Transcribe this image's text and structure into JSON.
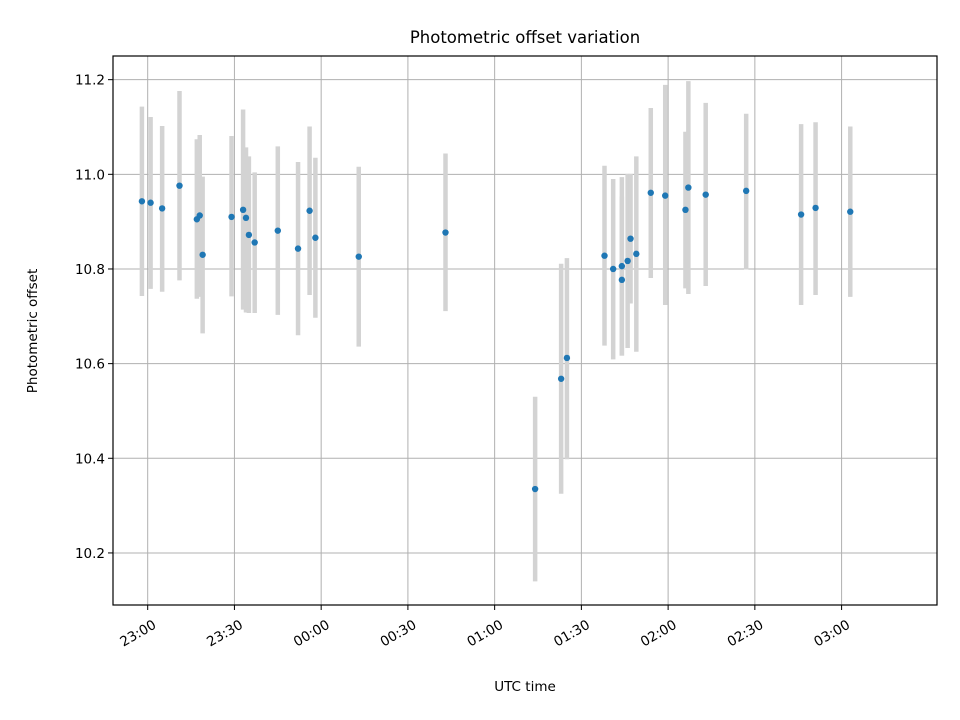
{
  "chart_data": {
    "type": "scatter",
    "title": "Photometric offset variation",
    "xlabel": "UTC time",
    "ylabel": "Photometric offset",
    "x_axis_type": "time",
    "xlim": [
      "22:48",
      "03:33"
    ],
    "ylim": [
      10.09,
      11.25
    ],
    "xticks": [
      "23:00",
      "23:30",
      "00:00",
      "00:30",
      "01:00",
      "01:30",
      "02:00",
      "02:30",
      "03:00"
    ],
    "yticks": [
      "10.2",
      "10.4",
      "10.6",
      "10.8",
      "11.0",
      "11.2"
    ],
    "grid": true,
    "colors": {
      "point": "#1f77b4",
      "errorbar": "#d3d3d3"
    },
    "series": [
      {
        "x": [
          "22:58",
          "23:01",
          "23:05",
          "23:11",
          "23:17",
          "23:18",
          "23:19",
          "23:29",
          "23:33",
          "23:34",
          "23:35",
          "23:37",
          "23:45",
          "23:52",
          "23:56",
          "23:58",
          "00:13",
          "00:43",
          "01:14",
          "01:23",
          "01:25",
          "01:38",
          "01:41",
          "01:44",
          "01:44",
          "01:46",
          "01:47",
          "01:49",
          "01:54",
          "01:59",
          "02:06",
          "02:07",
          "02:13",
          "02:27",
          "02:46",
          "02:51",
          "03:03"
        ],
        "y": [
          10.943,
          10.94,
          10.928,
          10.976,
          10.905,
          10.913,
          10.83,
          10.91,
          10.925,
          10.908,
          10.872,
          10.856,
          10.881,
          10.843,
          10.923,
          10.866,
          10.826,
          10.877,
          10.335,
          10.568,
          10.612,
          10.828,
          10.8,
          10.806,
          10.777,
          10.817,
          10.864,
          10.832,
          10.961,
          10.955,
          10.925,
          10.972,
          10.957,
          10.965,
          10.915,
          10.929,
          10.921
        ],
        "err_low": [
          10.743,
          10.758,
          10.752,
          10.776,
          10.737,
          10.741,
          10.664,
          10.742,
          10.714,
          10.708,
          10.707,
          10.707,
          10.703,
          10.66,
          10.745,
          10.697,
          10.636,
          10.711,
          10.14,
          10.325,
          10.398,
          10.638,
          10.609,
          10.617,
          10.617,
          10.633,
          10.727,
          10.625,
          10.781,
          10.724,
          10.759,
          10.747,
          10.764,
          10.799,
          10.724,
          10.745,
          10.741
        ],
        "err_high": [
          11.143,
          11.121,
          11.102,
          11.176,
          11.074,
          11.083,
          10.995,
          11.081,
          11.137,
          11.057,
          11.038,
          11.004,
          11.059,
          11.026,
          11.101,
          11.035,
          11.016,
          11.044,
          10.53,
          10.811,
          10.823,
          11.018,
          10.99,
          10.994,
          10.953,
          11.001,
          11.001,
          11.038,
          11.14,
          11.189,
          11.09,
          11.197,
          11.151,
          11.128,
          11.106,
          11.11,
          11.101
        ]
      }
    ]
  }
}
